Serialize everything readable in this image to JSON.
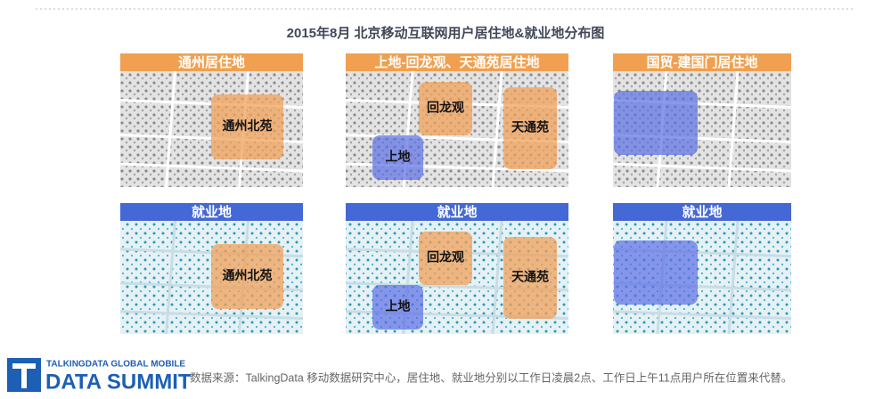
{
  "title": "2015年8月 北京移动互联网用户居住地&就业地分布图",
  "panels": [
    {
      "header": "通州居住地",
      "regions": [
        "通州北苑"
      ]
    },
    {
      "header": "上地-回龙观、天通苑居住地",
      "regions": [
        "回龙观",
        "天通苑",
        "上地"
      ]
    },
    {
      "header": "国贸-建国门居住地",
      "regions": []
    },
    {
      "header": "就业地",
      "regions": [
        "通州北苑"
      ]
    },
    {
      "header": "就业地",
      "regions": [
        "回龙观",
        "天通苑",
        "上地"
      ]
    },
    {
      "header": "就业地",
      "regions": []
    }
  ],
  "footer": {
    "tagline": "TALKINGDATA GLOBAL MOBILE",
    "name": "DATA SUMMIT",
    "source": "数据来源：TalkingData 移动数据研究中心，居住地、就业地分别以工作日凌晨2点、工作日上午11点用户所在位置来代替。"
  }
}
